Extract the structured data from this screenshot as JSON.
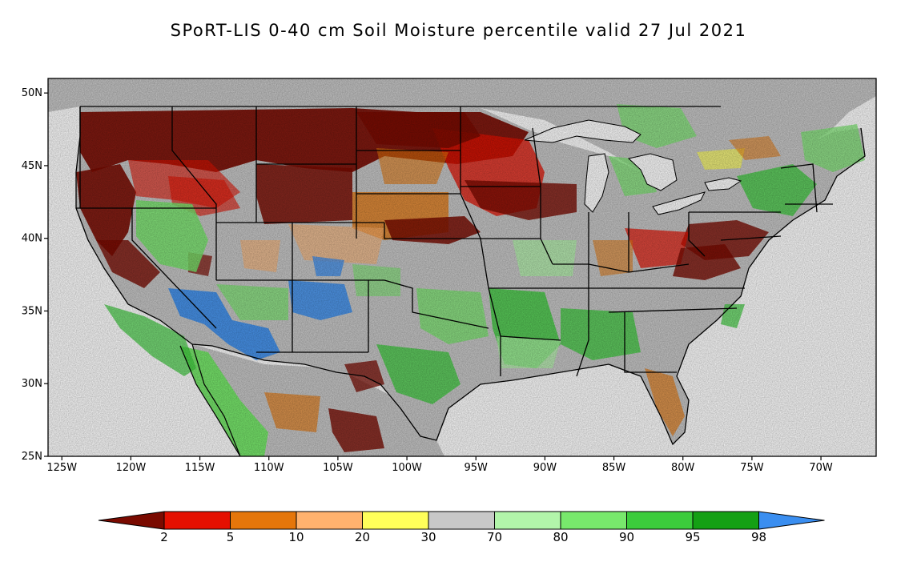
{
  "title": "SPoRT-LIS 0-40 cm Soil Moisture percentile valid 27 Jul 2021",
  "map": {
    "lon_range": [
      -126,
      -66
    ],
    "lat_range": [
      25,
      51
    ],
    "lat_ticks": [
      {
        "value": 50,
        "label": "50N"
      },
      {
        "value": 45,
        "label": "45N"
      },
      {
        "value": 40,
        "label": "40N"
      },
      {
        "value": 35,
        "label": "35N"
      },
      {
        "value": 30,
        "label": "30N"
      },
      {
        "value": 25,
        "label": "25N"
      }
    ],
    "lon_ticks": [
      {
        "value": -125,
        "label": "125W"
      },
      {
        "value": -120,
        "label": "120W"
      },
      {
        "value": -115,
        "label": "115W"
      },
      {
        "value": -110,
        "label": "110W"
      },
      {
        "value": -105,
        "label": "105W"
      },
      {
        "value": -100,
        "label": "100W"
      },
      {
        "value": -95,
        "label": "95W"
      },
      {
        "value": -90,
        "label": "90W"
      },
      {
        "value": -85,
        "label": "85W"
      },
      {
        "value": -80,
        "label": "80W"
      },
      {
        "value": -75,
        "label": "75W"
      },
      {
        "value": -70,
        "label": "70W"
      }
    ]
  },
  "colorbar": {
    "low_cap_color": "#7a0a00",
    "high_cap_color": "#3a8ef0",
    "bins": [
      {
        "color": "#e51000"
      },
      {
        "color": "#e5760a"
      },
      {
        "color": "#ffb26e"
      },
      {
        "color": "#ffff5a"
      },
      {
        "color": "#c8c8c8"
      },
      {
        "color": "#b2f5aa"
      },
      {
        "color": "#78e86c"
      },
      {
        "color": "#3ccc3c"
      },
      {
        "color": "#14a014"
      }
    ],
    "labels": [
      "2",
      "5",
      "10",
      "20",
      "30",
      "70",
      "80",
      "90",
      "95",
      "98"
    ]
  }
}
